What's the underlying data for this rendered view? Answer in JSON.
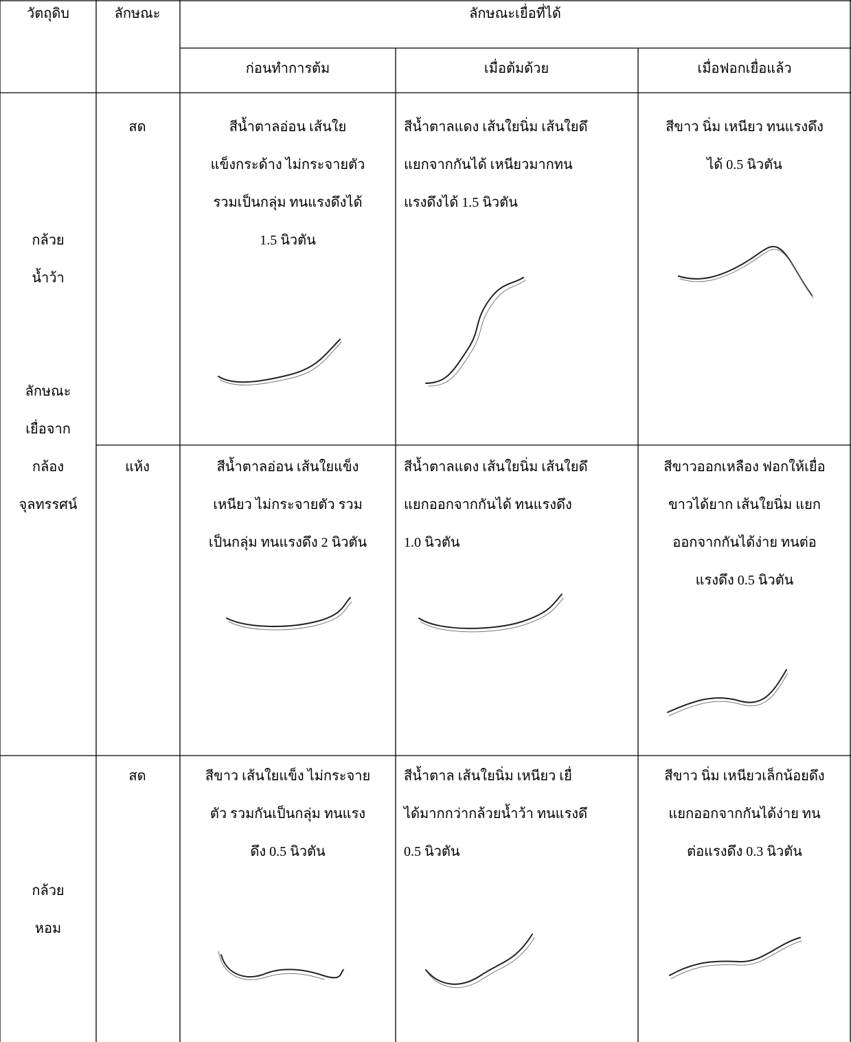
{
  "table": {
    "header": [
      "วัตถุดิบ",
      "ลักษณะ",
      "ลักษณะเยื่อที่ได้"
    ],
    "subheader": [
      "ก่อนทำการต้ม",
      "เมื่อต้มด้วย",
      "เมื่อฟอกเยื่อแล้ว"
    ],
    "groups": [
      {
        "material": [
          "กล้วย",
          "น้ำว้า"
        ],
        "note": [
          "ลักษณะ",
          "เยื่อจาก",
          "กล้อง",
          "จุลทรรศน์"
        ],
        "rows": [
          {
            "state": "สด",
            "cells": [
              [
                "สีน้ำตาลอ่อน เส้นใย",
                "แข็งกระด้าง ไม่กระจายตัว",
                "รวมเป็นกลุ่ม ทนแรงดึงได้",
                "1.5 นิวตัน"
              ],
              [
                "สีน้ำตาลแดง เส้นใยนิ่ม เส้นใยดึ",
                "แยกจากกันได้ เหนียวมากทน",
                "แรงดึงได้ 1.5 นิวตัน"
              ],
              [
                "สีขาว นิ่ม เหนียว ทนแรงดึง",
                "ได้ 0.5 นิวตัน"
              ]
            ]
          },
          {
            "state": "แห้ง",
            "cells": [
              [
                "สีน้ำตาลอ่อน เส้นใยแข็ง",
                "เหนียว ไม่กระจายตัว รวม",
                "เป็นกลุ่ม ทนแรงดึง 2 นิวตัน"
              ],
              [
                "สีน้ำตาลแดง เส้นใยนิ่ม เส้นใยดึ",
                "แยกออกจากกันได้ ทนแรงดึง",
                "1.0 นิวตัน"
              ],
              [
                "สีขาวออกเหลือง ฟอกให้เยื่อ",
                "ขาวได้ยาก เส้นใยนิ่ม แยก",
                "ออกจากกันได้ง่าย ทนต่อ",
                "แรงดึง 0.5 นิวตัน"
              ]
            ]
          }
        ]
      },
      {
        "material": [
          "กล้วย",
          "หอม"
        ],
        "rows": [
          {
            "state": "สด",
            "cells": [
              [
                "สีขาว เส้นใยแข็ง ไม่กระจาย",
                "ตัว รวมกันเป็นกลุ่ม ทนแรง",
                "ดึง 0.5 นิวตัน"
              ],
              [
                "สีน้ำตาล เส้นใยนิ่ม เหนียว เยื่",
                "ได้มากกว่ากล้วยน้ำว้า ทนแรงดึ",
                "0.5 นิวตัน"
              ],
              [
                "สีขาว นิ่ม เหนียวเล็กน้อยดึง",
                "แยกออกจากกันได้ง่าย ทน",
                "ต่อแรงดึง 0.3 นิวตัน"
              ]
            ]
          }
        ]
      }
    ]
  }
}
